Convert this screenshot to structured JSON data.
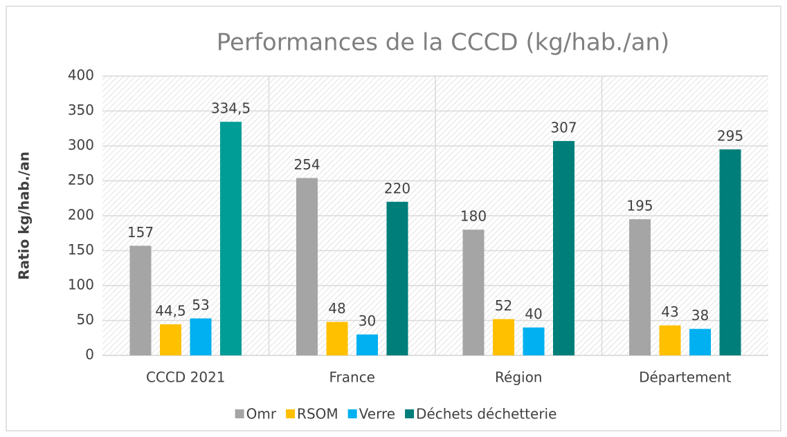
{
  "chart_data": {
    "type": "bar",
    "title": "Performances de la CCCD (kg/hab./an)",
    "y_label": "Ratio kg/hab./an",
    "categories": [
      "CCCD 2021",
      "France",
      "Région",
      "Département"
    ],
    "series": [
      {
        "name": "Omr",
        "color": "#a5a5a5",
        "values": [
          157,
          254,
          180,
          195
        ]
      },
      {
        "name": "RSOM",
        "color": "#ffc000",
        "values": [
          44.5,
          48,
          52,
          43
        ],
        "value_labels": [
          "44,5",
          "48",
          "52",
          "43"
        ]
      },
      {
        "name": "Verre",
        "color": "#00b0f0",
        "values": [
          53,
          30,
          40,
          38
        ]
      },
      {
        "name": "Déchets déchetterie",
        "color": "#007f7a",
        "colors": [
          "#009d97",
          "#007f7a",
          "#007f7a",
          "#007f7a"
        ],
        "values": [
          334.5,
          220,
          307,
          295
        ],
        "value_labels": [
          "334,5",
          "220",
          "307",
          "295"
        ]
      }
    ],
    "ylim": [
      0,
      400
    ],
    "yticks": [
      0,
      50,
      100,
      150,
      200,
      250,
      300,
      350,
      400
    ],
    "grid": true,
    "legend": "bottom"
  }
}
